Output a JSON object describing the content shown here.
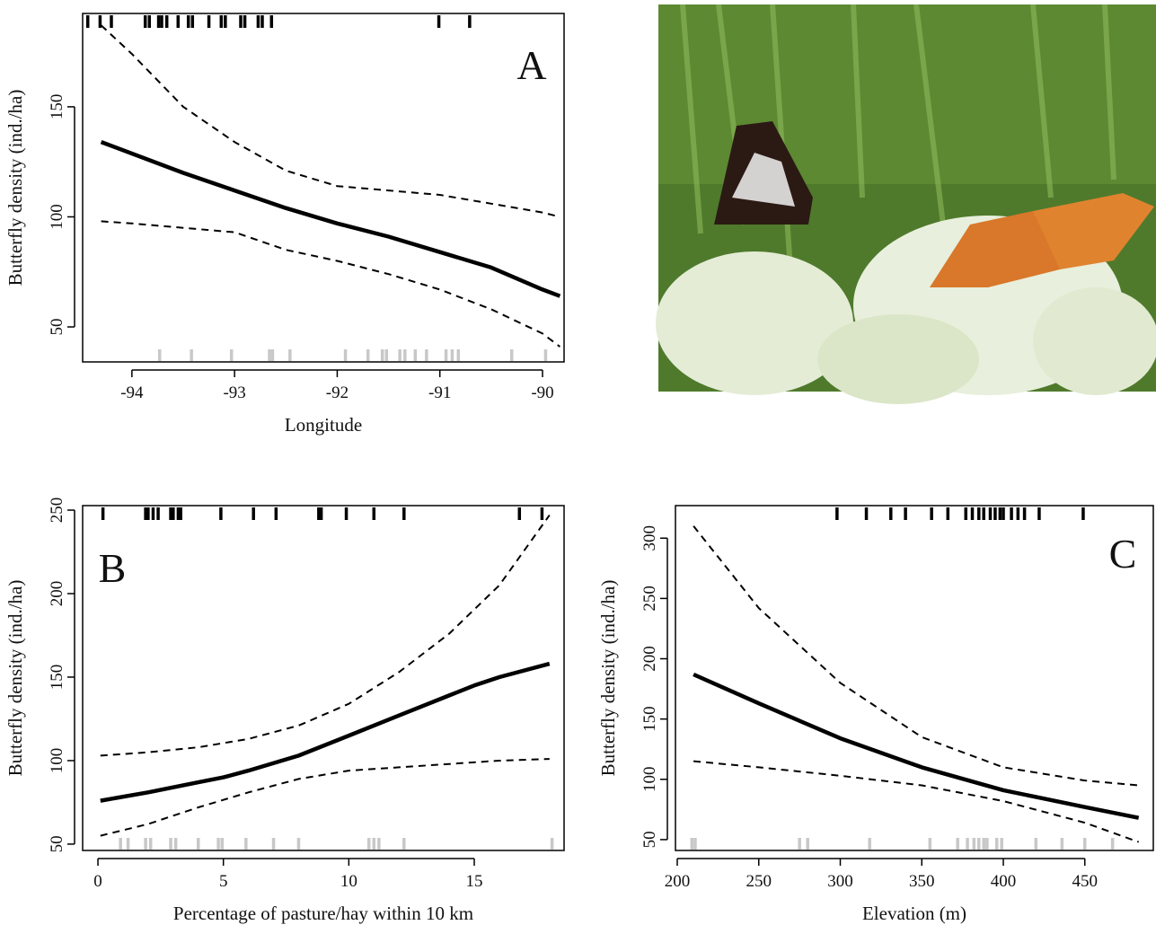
{
  "chart_data": [
    {
      "type": "line",
      "annotation": "A",
      "xlabel": "Longitude",
      "ylabel": "Butterfly density (ind./ha)",
      "xlim": [
        -94.48,
        -89.79
      ],
      "ylim": [
        34.1,
        192.4
      ],
      "xticks": [
        -94,
        -93,
        -92,
        -91,
        -90
      ],
      "yticks": [
        50,
        100,
        150
      ],
      "series": [
        {
          "color": "#000000",
          "style": "solid",
          "x": [
            -94.3,
            -93.5,
            -93,
            -92.5,
            -92,
            -91.5,
            -91,
            -90.5,
            -90,
            -89.83
          ],
          "values": [
            134,
            120,
            112,
            104,
            97,
            91,
            84,
            77,
            67,
            64
          ]
        },
        {
          "color": "#000000",
          "style": "dashed",
          "x": [
            -94.3,
            -94,
            -93.5,
            -93,
            -92.5,
            -92,
            -91.5,
            -91,
            -90.5,
            -90,
            -89.83
          ],
          "values": [
            187,
            174,
            150,
            134,
            121,
            114,
            112,
            110,
            106,
            102,
            100
          ]
        },
        {
          "color": "#000000",
          "style": "dashed",
          "x": [
            -94.3,
            -94,
            -93.5,
            -93,
            -92.5,
            -92,
            -91.5,
            -91,
            -90.5,
            -90,
            -89.83
          ],
          "values": [
            98,
            97,
            95,
            93,
            85,
            80,
            74,
            67,
            58,
            47,
            41
          ]
        }
      ],
      "rug_top": {
        "color": "#000000",
        "x": [
          -94.43,
          -94.31,
          -94.2,
          -93.87,
          -93.83,
          -93.74,
          -93.71,
          -93.66,
          -93.55,
          -93.45,
          -93.41,
          -93.25,
          -93.13,
          -93.09,
          -92.94,
          -92.9,
          -92.77,
          -92.73,
          -92.64,
          -91.01,
          -90.71
        ]
      },
      "rug_bottom": {
        "color": "#c8c8c8",
        "x": [
          -93.73,
          -93.42,
          -93.03,
          -92.66,
          -92.63,
          -92.46,
          -91.92,
          -91.7,
          -91.56,
          -91.52,
          -91.39,
          -91.34,
          -91.24,
          -91.13,
          -90.94,
          -90.88,
          -90.82,
          -90.3,
          -89.97
        ]
      }
    },
    {
      "type": "line",
      "annotation": "B",
      "xlabel": "Percentage of pasture/hay within 10 km",
      "ylabel": "Butterfly density (ind./ha)",
      "xlim": [
        -0.61,
        18.58
      ],
      "ylim": [
        46.2,
        252.7
      ],
      "xticks": [
        0,
        5,
        10,
        15
      ],
      "yticks": [
        50,
        100,
        150,
        200,
        250
      ],
      "series": [
        {
          "color": "#000000",
          "style": "solid",
          "x": [
            0.1,
            2,
            4,
            5,
            6,
            8,
            10,
            12,
            14,
            15,
            16,
            18
          ],
          "values": [
            76,
            81,
            87,
            90,
            94,
            103,
            115,
            127,
            139,
            145,
            150,
            158
          ]
        },
        {
          "color": "#000000",
          "style": "dashed",
          "x": [
            0.1,
            2,
            4,
            6,
            8,
            10,
            12,
            14,
            16,
            18
          ],
          "values": [
            103,
            105,
            108,
            113,
            121,
            134,
            153,
            176,
            205,
            247
          ]
        },
        {
          "color": "#000000",
          "style": "dashed",
          "x": [
            0.1,
            2,
            4,
            6,
            8,
            10,
            12,
            14,
            16,
            18
          ],
          "values": [
            55,
            62,
            72,
            81,
            89,
            94,
            96,
            98,
            100,
            101
          ]
        }
      ],
      "rug_top": {
        "color": "#000000",
        "x": [
          0.2,
          1.9,
          2.0,
          2.2,
          2.4,
          2.9,
          3.0,
          3.2,
          3.3,
          4.9,
          6.2,
          7.1,
          8.8,
          8.9,
          9.9,
          11.0,
          12.2,
          16.8,
          17.7
        ]
      },
      "rug_bottom": {
        "color": "#c8c8c8",
        "x": [
          0.9,
          1.2,
          1.9,
          2.1,
          2.9,
          3.1,
          4.0,
          4.8,
          4.95,
          5.9,
          7.0,
          8.0,
          10.8,
          11.0,
          11.2,
          12.2,
          18.1
        ]
      }
    },
    {
      "type": "line",
      "annotation": "C",
      "xlabel": "Elevation (m)",
      "ylabel": "Butterfly density (ind./ha)",
      "xlim": [
        198.9,
        492
      ],
      "ylim": [
        41,
        327
      ],
      "xticks": [
        200,
        250,
        300,
        350,
        400,
        450
      ],
      "yticks": [
        50,
        100,
        150,
        200,
        250,
        300
      ],
      "series": [
        {
          "color": "#000000",
          "style": "solid",
          "x": [
            210,
            250,
            300,
            350,
            400,
            450,
            483
          ],
          "values": [
            187,
            163,
            134,
            110,
            91,
            77,
            68
          ]
        },
        {
          "color": "#000000",
          "style": "dashed",
          "x": [
            210,
            250,
            300,
            350,
            400,
            450,
            483
          ],
          "values": [
            310,
            242,
            180,
            135,
            110,
            99,
            95
          ]
        },
        {
          "color": "#000000",
          "style": "dashed",
          "x": [
            210,
            250,
            300,
            350,
            400,
            450,
            483
          ],
          "values": [
            115,
            110,
            103,
            95,
            82,
            64,
            48
          ]
        }
      ],
      "rug_top": {
        "color": "#000000",
        "x": [
          298,
          316,
          331,
          340,
          356,
          366,
          377,
          381,
          385,
          388,
          392,
          395,
          398,
          400,
          405,
          409,
          413,
          422,
          449
        ]
      },
      "rug_bottom": {
        "color": "#c8c8c8",
        "x": [
          209,
          211,
          275,
          280,
          318,
          355,
          372,
          378,
          382,
          385,
          388,
          390,
          396,
          399,
          420,
          436,
          450,
          467
        ]
      }
    }
  ]
}
